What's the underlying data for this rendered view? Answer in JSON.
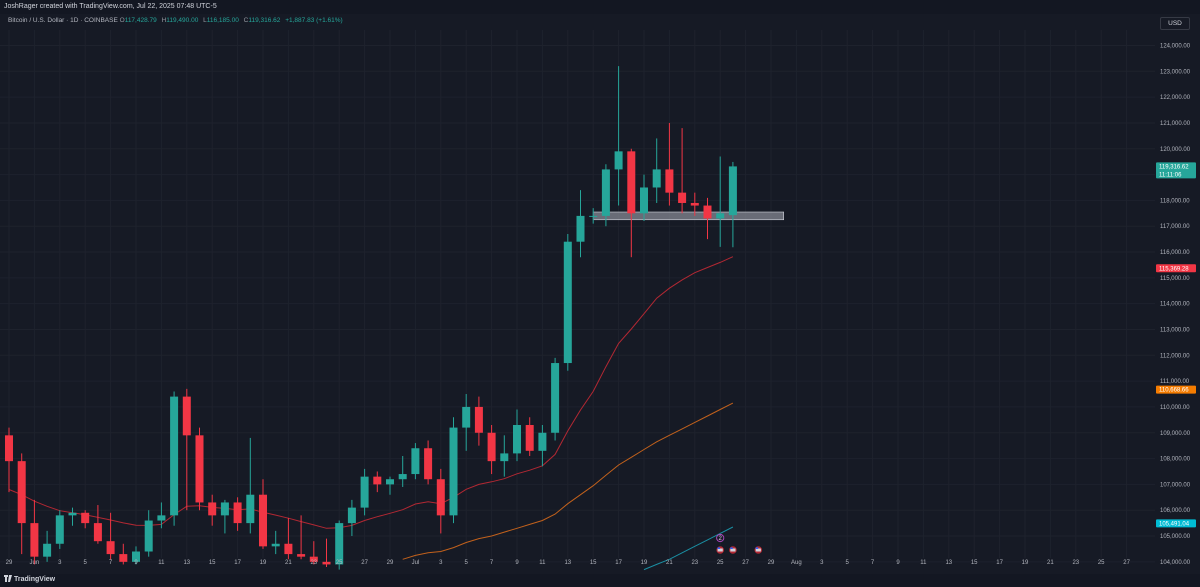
{
  "header": {
    "creator": "JoshRager created with TradingView.com, Jul 22, 2025 07:48 UTC-5",
    "symbol": "Bitcoin / U.S. Dollar · 1D · COINBASE",
    "ohlc": [
      {
        "label": "O",
        "value": "117,428.79"
      },
      {
        "label": "H",
        "value": "119,490.00"
      },
      {
        "label": "L",
        "value": "116,185.00"
      },
      {
        "label": "C",
        "value": "119,316.62"
      }
    ],
    "change": "+1,887.83 (+1.61%)",
    "currency": "USD"
  },
  "footer": {
    "brand": "TradingView"
  },
  "colors": {
    "up": "#26a69a",
    "down": "#f23645",
    "ema_red": "#b22833",
    "ema_orange": "#c2611c",
    "ema_cyan": "#1a8fa3",
    "zone": "#787b86",
    "grid": "#1e222d"
  },
  "chart_data": {
    "type": "candlestick",
    "ylim": [
      103800,
      124600
    ],
    "y_ticks": [
      104000,
      105000,
      106000,
      107000,
      108000,
      109000,
      110000,
      111000,
      112000,
      113000,
      114000,
      115000,
      116000,
      117000,
      118000,
      119000,
      120000,
      121000,
      122000,
      123000,
      124000
    ],
    "y_tick_labels": [
      "104,000.00",
      "105,000.00",
      "106,000.00",
      "107,000.00",
      "108,000.00",
      "109,000.00",
      "110,000.00",
      "111,000.00",
      "112,000.00",
      "113,000.00",
      "114,000.00",
      "115,000.00",
      "116,000.00",
      "117,000.00",
      "118,000.00",
      "119,000.00",
      "120,000.00",
      "121,000.00",
      "122,000.00",
      "123,000.00",
      "124,000.00"
    ],
    "x_labels": [
      "29",
      "Jun",
      "3",
      "5",
      "7",
      "9",
      "11",
      "13",
      "15",
      "17",
      "19",
      "21",
      "23",
      "25",
      "27",
      "29",
      "Jul",
      "3",
      "5",
      "7",
      "9",
      "11",
      "13",
      "15",
      "17",
      "19",
      "21",
      "23",
      "25",
      "27",
      "29",
      "Aug",
      "3",
      "5",
      "7",
      "9",
      "11",
      "13",
      "15",
      "17",
      "19",
      "21",
      "23",
      "25",
      "27"
    ],
    "x_first_label_index": 1,
    "candles": [
      {
        "o": 108900,
        "h": 109200,
        "l": 106700,
        "c": 107900
      },
      {
        "o": 107900,
        "h": 108200,
        "l": 104300,
        "c": 105500
      },
      {
        "o": 105500,
        "h": 106400,
        "l": 103900,
        "c": 104200
      },
      {
        "o": 104200,
        "h": 105200,
        "l": 104000,
        "c": 104700
      },
      {
        "o": 104700,
        "h": 106000,
        "l": 104500,
        "c": 105800
      },
      {
        "o": 105800,
        "h": 106100,
        "l": 105400,
        "c": 105900
      },
      {
        "o": 105900,
        "h": 106000,
        "l": 105300,
        "c": 105500
      },
      {
        "o": 105500,
        "h": 106200,
        "l": 104700,
        "c": 104800
      },
      {
        "o": 104800,
        "h": 105900,
        "l": 104100,
        "c": 104300
      },
      {
        "o": 104300,
        "h": 104700,
        "l": 103900,
        "c": 104000
      },
      {
        "o": 104000,
        "h": 104600,
        "l": 103900,
        "c": 104400
      },
      {
        "o": 104400,
        "h": 106000,
        "l": 104200,
        "c": 105600
      },
      {
        "o": 105600,
        "h": 106300,
        "l": 105300,
        "c": 105800
      },
      {
        "o": 105800,
        "h": 110600,
        "l": 105400,
        "c": 110400
      },
      {
        "o": 110400,
        "h": 110700,
        "l": 106000,
        "c": 108900
      },
      {
        "o": 108900,
        "h": 109200,
        "l": 106000,
        "c": 106300
      },
      {
        "o": 106300,
        "h": 106600,
        "l": 105400,
        "c": 105800
      },
      {
        "o": 105800,
        "h": 106400,
        "l": 105100,
        "c": 106300
      },
      {
        "o": 106300,
        "h": 106500,
        "l": 105200,
        "c": 105500
      },
      {
        "o": 105500,
        "h": 108800,
        "l": 105100,
        "c": 106600
      },
      {
        "o": 106600,
        "h": 107200,
        "l": 104500,
        "c": 104600
      },
      {
        "o": 104600,
        "h": 105200,
        "l": 104300,
        "c": 104700
      },
      {
        "o": 104700,
        "h": 105700,
        "l": 104100,
        "c": 104300
      },
      {
        "o": 104300,
        "h": 105800,
        "l": 104100,
        "c": 104200
      },
      {
        "o": 104200,
        "h": 104800,
        "l": 103900,
        "c": 104000
      },
      {
        "o": 104000,
        "h": 104900,
        "l": 103800,
        "c": 103900
      },
      {
        "o": 103900,
        "h": 105600,
        "l": 103700,
        "c": 105500
      },
      {
        "o": 105500,
        "h": 106400,
        "l": 105000,
        "c": 106100
      },
      {
        "o": 106100,
        "h": 107600,
        "l": 105800,
        "c": 107300
      },
      {
        "o": 107300,
        "h": 107500,
        "l": 106700,
        "c": 107000
      },
      {
        "o": 107000,
        "h": 107300,
        "l": 106600,
        "c": 107200
      },
      {
        "o": 107200,
        "h": 108100,
        "l": 106900,
        "c": 107400
      },
      {
        "o": 107400,
        "h": 108600,
        "l": 107200,
        "c": 108400
      },
      {
        "o": 108400,
        "h": 108700,
        "l": 107000,
        "c": 107200
      },
      {
        "o": 107200,
        "h": 107600,
        "l": 105100,
        "c": 105800
      },
      {
        "o": 105800,
        "h": 109600,
        "l": 105500,
        "c": 109200
      },
      {
        "o": 109200,
        "h": 110500,
        "l": 108300,
        "c": 110000
      },
      {
        "o": 110000,
        "h": 110400,
        "l": 108500,
        "c": 109000
      },
      {
        "o": 109000,
        "h": 109300,
        "l": 107400,
        "c": 107900
      },
      {
        "o": 107900,
        "h": 108900,
        "l": 107300,
        "c": 108200
      },
      {
        "o": 108200,
        "h": 109900,
        "l": 107900,
        "c": 109300
      },
      {
        "o": 109300,
        "h": 109600,
        "l": 108100,
        "c": 108300
      },
      {
        "o": 108300,
        "h": 109300,
        "l": 107700,
        "c": 109000
      },
      {
        "o": 109000,
        "h": 111900,
        "l": 108700,
        "c": 111700
      },
      {
        "o": 111700,
        "h": 116700,
        "l": 111400,
        "c": 116400
      },
      {
        "o": 116400,
        "h": 118400,
        "l": 115800,
        "c": 117400
      },
      {
        "o": 117400,
        "h": 117700,
        "l": 117100,
        "c": 117400
      },
      {
        "o": 117400,
        "h": 119400,
        "l": 117000,
        "c": 119200
      },
      {
        "o": 119200,
        "h": 123200,
        "l": 117800,
        "c": 119900
      },
      {
        "o": 119900,
        "h": 120000,
        "l": 115800,
        "c": 117500
      },
      {
        "o": 117500,
        "h": 119000,
        "l": 117200,
        "c": 118500
      },
      {
        "o": 118500,
        "h": 120400,
        "l": 117900,
        "c": 119200
      },
      {
        "o": 119200,
        "h": 121000,
        "l": 117800,
        "c": 118300
      },
      {
        "o": 118300,
        "h": 120800,
        "l": 117500,
        "c": 117900
      },
      {
        "o": 117900,
        "h": 118300,
        "l": 117400,
        "c": 117800
      },
      {
        "o": 117800,
        "h": 118100,
        "l": 116500,
        "c": 117300
      },
      {
        "o": 117300,
        "h": 119700,
        "l": 116200,
        "c": 117500
      },
      {
        "o": 117428.79,
        "h": 119490,
        "l": 116185,
        "c": 119316.62
      }
    ],
    "ema_red": [
      106800,
      106600,
      106350,
      106150,
      105980,
      105900,
      105820,
      105720,
      105620,
      105510,
      105420,
      105410,
      105450,
      105830,
      106150,
      106170,
      106110,
      106070,
      106020,
      106050,
      105920,
      105810,
      105690,
      105560,
      105430,
      105300,
      105320,
      105410,
      105600,
      105750,
      105880,
      106020,
      106240,
      106330,
      106250,
      106500,
      106810,
      107000,
      107100,
      107220,
      107410,
      107550,
      107720,
      108160,
      109070,
      109880,
      110600,
      111560,
      112460,
      113020,
      113610,
      114210,
      114600,
      114920,
      115200,
      115400,
      115600,
      115820
    ],
    "ema_orange": [
      null,
      null,
      null,
      null,
      null,
      null,
      null,
      null,
      null,
      null,
      null,
      null,
      null,
      null,
      null,
      null,
      null,
      null,
      null,
      null,
      null,
      null,
      null,
      null,
      null,
      null,
      null,
      null,
      null,
      null,
      null,
      104100,
      104250,
      104350,
      104400,
      104550,
      104750,
      104900,
      105000,
      105150,
      105300,
      105450,
      105600,
      105850,
      106250,
      106600,
      106950,
      107350,
      107750,
      108050,
      108350,
      108650,
      108900,
      109150,
      109400,
      109650,
      109900,
      110150
    ],
    "ema_cyan": [
      null,
      null,
      null,
      null,
      null,
      null,
      null,
      null,
      null,
      null,
      null,
      null,
      null,
      null,
      null,
      null,
      null,
      null,
      null,
      null,
      null,
      null,
      null,
      null,
      null,
      null,
      null,
      null,
      null,
      null,
      null,
      null,
      null,
      null,
      null,
      null,
      null,
      null,
      null,
      null,
      null,
      null,
      null,
      null,
      null,
      null,
      null,
      null,
      null,
      null,
      103700,
      103900,
      104100,
      104350,
      104600,
      104850,
      105100,
      105350
    ],
    "zone": {
      "from_index": 46,
      "to_index": 61,
      "low": 117250,
      "high": 117550
    },
    "price_tags": [
      {
        "label": "119,316.62",
        "sublabel": "11:11:06",
        "value": 119316.62,
        "color": "#26a69a"
      },
      {
        "label": "115,369.28",
        "value": 115369.28,
        "color": "#f23645"
      },
      {
        "label": "110,668.66",
        "value": 110668.66,
        "color": "#f57c00"
      },
      {
        "label": "105,491.04",
        "value": 105491.04,
        "color": "#00bcd4"
      }
    ],
    "event_markers": [
      {
        "index": 56,
        "kind": "flag-icon"
      },
      {
        "index": 57,
        "kind": "flag-icon"
      },
      {
        "index": 59,
        "kind": "flag-icon"
      }
    ],
    "alert_marker": {
      "index": 56,
      "label": "2"
    }
  }
}
